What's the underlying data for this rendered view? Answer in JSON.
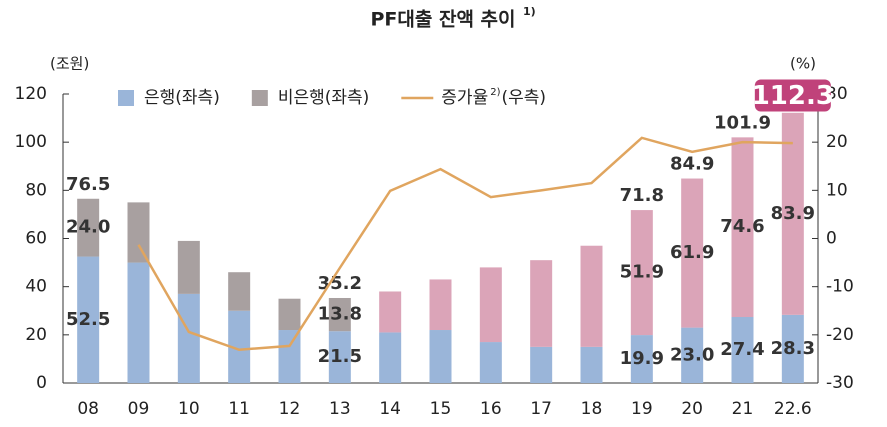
{
  "chart_data": {
    "type": "bar_line",
    "title": "PF대출 잔액 추이",
    "title_note": "1)",
    "y_unit": "(조원)",
    "y2_unit": "(%)",
    "categories": [
      "08",
      "09",
      "10",
      "11",
      "12",
      "13",
      "14",
      "15",
      "16",
      "17",
      "18",
      "19",
      "20",
      "21",
      "22.6"
    ],
    "ylim": [
      0,
      120
    ],
    "yticks": [
      0,
      20,
      40,
      60,
      80,
      100,
      120
    ],
    "y2lim": [
      -30,
      30
    ],
    "y2ticks": [
      -30,
      -20,
      -10,
      0,
      10,
      20,
      30
    ],
    "series": [
      {
        "name": "은행(좌측)",
        "color": "#9ab5d9",
        "values": [
          52.5,
          50,
          37,
          30,
          22,
          21.5,
          21,
          22,
          17,
          15,
          15,
          19.9,
          23.0,
          27.4,
          28.3
        ],
        "value_labels": [
          "52.5",
          null,
          null,
          null,
          null,
          "21.5",
          null,
          null,
          null,
          null,
          null,
          "19.9",
          "23.0",
          "27.4",
          "28.3"
        ]
      },
      {
        "name": "비은행(좌측)",
        "color": "#a8a0a0",
        "point_colors": [
          "#a8a0a0",
          "#a8a0a0",
          "#a8a0a0",
          "#a8a0a0",
          "#a8a0a0",
          "#a8a0a0",
          "#dba4b8",
          "#dba4b8",
          "#dba4b8",
          "#dba4b8",
          "#dba4b8",
          "#dba4b8",
          "#dba4b8",
          "#dba4b8",
          "#dba4b8"
        ],
        "values": [
          24.0,
          25,
          22,
          16,
          13,
          13.8,
          17,
          21,
          31,
          36,
          42,
          51.9,
          61.9,
          74.6,
          83.9
        ],
        "value_labels": [
          "24.0",
          null,
          null,
          null,
          null,
          "13.8",
          null,
          null,
          null,
          null,
          null,
          "51.9",
          "61.9",
          "74.6",
          "83.9"
        ]
      },
      {
        "name": "증가율",
        "name_note": "2)",
        "name_suffix": "(우측)",
        "color": "#e0a55f",
        "axis": "y2",
        "type": "line",
        "values": [
          null,
          -1.3,
          -19.4,
          -23.1,
          -22.3,
          -6.1,
          9.9,
          14.4,
          8.6,
          10,
          11.5,
          20.9,
          18,
          20,
          19.8
        ]
      }
    ],
    "totals": [
      76.5,
      null,
      null,
      null,
      null,
      35.2,
      null,
      null,
      null,
      null,
      null,
      71.8,
      84.9,
      101.9,
      112.3
    ],
    "total_highlight_color": "#c0427a"
  }
}
